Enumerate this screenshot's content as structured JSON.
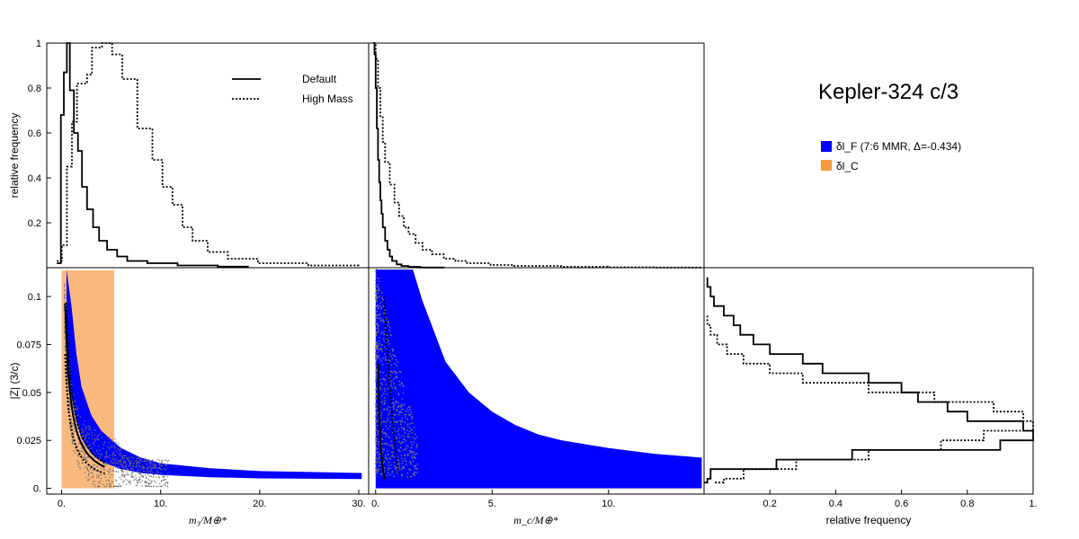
{
  "chart_data": [
    {
      "panel": "top-left",
      "type": "line",
      "xlim": [
        -1,
        31
      ],
      "ylim": [
        0,
        1.0
      ],
      "ylabel": "relative frequency",
      "yticks": [
        "0.2",
        "0.4",
        "0.6",
        "0.8",
        "1"
      ],
      "yticks_values": [
        0.2,
        0.4,
        0.6,
        0.8,
        1.0
      ],
      "legend": {
        "placement": "top-right",
        "entries": [
          "Default",
          "High Mass"
        ]
      },
      "series": [
        {
          "name": "Default",
          "style": "solid",
          "x": [
            0,
            0.4,
            0.7,
            1.0,
            1.3,
            1.7,
            2.1,
            2.5,
            3.0,
            3.6,
            4.2,
            5,
            6,
            7,
            9,
            12,
            16,
            19
          ],
          "y": [
            0.02,
            0.68,
            0.87,
            1.0,
            0.79,
            0.6,
            0.52,
            0.36,
            0.26,
            0.18,
            0.12,
            0.08,
            0.05,
            0.03,
            0.02,
            0.01,
            0.005,
            0.0
          ]
        },
        {
          "name": "High Mass",
          "style": "dotted",
          "x": [
            0,
            0.5,
            1.0,
            1.5,
            2.0,
            3.0,
            3.5,
            4.5,
            5.5,
            6.5,
            8,
            9.5,
            10.5,
            11.5,
            12.5,
            13.5,
            15,
            17,
            20,
            25,
            30
          ],
          "y": [
            0.03,
            0.1,
            0.45,
            0.65,
            0.82,
            0.86,
            0.98,
            1.0,
            0.95,
            0.84,
            0.62,
            0.48,
            0.36,
            0.28,
            0.18,
            0.12,
            0.07,
            0.04,
            0.02,
            0.01,
            0.005
          ]
        }
      ]
    },
    {
      "panel": "top-middle",
      "type": "line",
      "xlim": [
        -0.2,
        14.1
      ],
      "ylim": [
        0,
        1.0
      ],
      "series": [
        {
          "name": "Default",
          "style": "solid",
          "x": [
            0,
            0.05,
            0.1,
            0.15,
            0.2,
            0.25,
            0.3,
            0.35,
            0.4,
            0.5,
            0.6,
            0.7,
            0.8,
            1.0,
            1.2,
            1.5,
            2.0,
            3.0
          ],
          "y": [
            1.0,
            0.95,
            0.8,
            0.62,
            0.48,
            0.38,
            0.3,
            0.24,
            0.18,
            0.12,
            0.08,
            0.05,
            0.03,
            0.015,
            0.008,
            0.004,
            0.001,
            0.0
          ]
        },
        {
          "name": "High Mass",
          "style": "dotted",
          "x": [
            0,
            0.1,
            0.2,
            0.3,
            0.4,
            0.5,
            0.7,
            0.9,
            1.1,
            1.3,
            1.5,
            1.8,
            2.1,
            2.5,
            3.0,
            3.5,
            4.0,
            5.0,
            6.0,
            8.0,
            10.0,
            12.0,
            14.0
          ],
          "y": [
            1.0,
            0.93,
            0.8,
            0.67,
            0.56,
            0.47,
            0.37,
            0.29,
            0.23,
            0.18,
            0.15,
            0.11,
            0.08,
            0.06,
            0.04,
            0.03,
            0.02,
            0.012,
            0.008,
            0.004,
            0.002,
            0.001,
            0.0
          ]
        }
      ]
    },
    {
      "panel": "bottom-left",
      "type": "scatter",
      "xlabel": "m3/M⊕*",
      "ylabel": "|Z| (3/c)",
      "xlim": [
        -1.5,
        31
      ],
      "ylim": [
        -0.003,
        0.115
      ],
      "xticks": [
        "0.",
        "10.",
        "20.",
        "30."
      ],
      "xticks_values": [
        0,
        10,
        20,
        30
      ],
      "yticks": [
        "0.",
        "0.025",
        "0.05",
        "0.075",
        "0.1"
      ],
      "yticks_values": [
        0,
        0.025,
        0.05,
        0.075,
        0.1
      ],
      "shaded_region": {
        "label": "δl_C",
        "x": [
          0,
          5.3
        ],
        "color": "#f9b97e"
      },
      "blue_band": {
        "label": "δl_F",
        "x": [
          0.5,
          1.0,
          1.5,
          2,
          3,
          4,
          6,
          8,
          10,
          15,
          20,
          25,
          30.3
        ],
        "upper": [
          0.114,
          0.095,
          0.07,
          0.053,
          0.038,
          0.03,
          0.021,
          0.016,
          0.013,
          0.0105,
          0.009,
          0.0085,
          0.008
        ],
        "lower": [
          0.06,
          0.048,
          0.035,
          0.026,
          0.018,
          0.014,
          0.01,
          0.008,
          0.007,
          0.0058,
          0.0052,
          0.005,
          0.0048
        ]
      }
    },
    {
      "panel": "bottom-middle",
      "type": "scatter",
      "xlabel": "mc/M⊕*",
      "xlim": [
        -0.3,
        14.1
      ],
      "ylim": [
        -0.003,
        0.115
      ],
      "xticks": [
        "0.",
        "5.",
        "10."
      ],
      "xticks_values": [
        0,
        5,
        10
      ],
      "blue_band": {
        "label": "δl_F",
        "x": [
          0.0,
          1.6,
          2,
          3,
          4,
          5,
          6,
          7,
          8,
          10,
          12,
          14
        ],
        "upper": [
          0.118,
          0.118,
          0.098,
          0.066,
          0.05,
          0.04,
          0.033,
          0.028,
          0.025,
          0.021,
          0.018,
          0.016
        ],
        "lower": [
          0.0,
          0.0,
          0.0,
          0.0,
          0.0,
          0.0,
          0.0,
          0.0,
          0.0,
          0.0,
          0.0,
          0.0
        ]
      }
    },
    {
      "panel": "bottom-right",
      "type": "line",
      "xlabel": "relative frequency",
      "xlim": [
        0,
        1.0
      ],
      "ylim": [
        -0.003,
        0.115
      ],
      "xticks": [
        "0.2",
        "0.4",
        "0.6",
        "0.8",
        "1."
      ],
      "xticks_values": [
        0.2,
        0.4,
        0.6,
        0.8,
        1.0
      ],
      "series": [
        {
          "name": "Default",
          "style": "solid",
          "y": [
            0.11,
            0.105,
            0.1,
            0.095,
            0.09,
            0.085,
            0.08,
            0.075,
            0.07,
            0.065,
            0.06,
            0.055,
            0.05,
            0.045,
            0.04,
            0.035,
            0.03,
            0.025,
            0.02,
            0.015,
            0.01,
            0.005,
            0.003
          ],
          "x": [
            0.01,
            0.02,
            0.03,
            0.06,
            0.09,
            0.11,
            0.15,
            0.2,
            0.3,
            0.36,
            0.5,
            0.6,
            0.65,
            0.74,
            0.8,
            0.97,
            1.0,
            0.9,
            0.45,
            0.22,
            0.02,
            0.01,
            0.0
          ]
        },
        {
          "name": "High Mass",
          "style": "dotted",
          "y": [
            0.09,
            0.085,
            0.08,
            0.075,
            0.07,
            0.065,
            0.06,
            0.055,
            0.05,
            0.045,
            0.04,
            0.035,
            0.03,
            0.025,
            0.02,
            0.015,
            0.01,
            0.005,
            0.003
          ],
          "x": [
            0.01,
            0.02,
            0.04,
            0.07,
            0.12,
            0.2,
            0.3,
            0.5,
            0.7,
            0.88,
            0.97,
            1.0,
            0.85,
            0.72,
            0.5,
            0.28,
            0.12,
            0.06,
            0.03
          ]
        }
      ]
    }
  ],
  "annotation": {
    "title": "Kepler-324 c/3",
    "legend": [
      {
        "label": "δl_F (7:6 MMR, Δ=-0.434)",
        "color": "#0000ff"
      },
      {
        "label": "δl_C",
        "color": "#f59a3e"
      }
    ]
  },
  "legend_top": {
    "default": "Default",
    "high_mass": "High Mass"
  },
  "axis_labels": {
    "ylabel_top": "relative frequency",
    "ylabel_bottom": "|Z| (3/c)",
    "xlabel_left": "m₃/M⊕*",
    "xlabel_middle": "m_c/M⊕*",
    "xlabel_right": "relative frequency"
  },
  "colors": {
    "blue": "#0000ff",
    "orange": "#fbb879",
    "grey": "#7f7f7f"
  }
}
